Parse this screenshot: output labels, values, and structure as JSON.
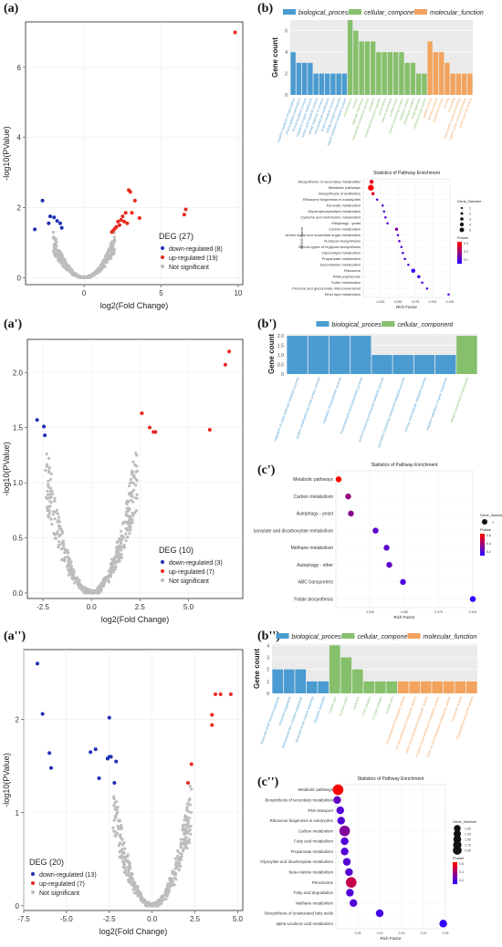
{
  "panel_labels": [
    "(a)",
    "(b)",
    "(c)",
    "(a')",
    "(b')",
    "(c')",
    "(a'')",
    "(b'')",
    "(c'')"
  ],
  "colors": {
    "down": "#1f2fb4",
    "up": "#e8281e",
    "ns": "#bdbdbd",
    "biological_process": "#4a9bd1",
    "cellular_component": "#86c06c",
    "molecular_function": "#f2a35e",
    "pvalue_low": "#ff0000",
    "pvalue_high": "#3300ff"
  },
  "chart_data": [
    {
      "id": "a",
      "type": "scatter",
      "xlabel": "log2(Fold Change)",
      "ylabel": "-log10(PValue)",
      "xlim": [
        -3.8,
        10.3
      ],
      "ylim": [
        -0.2,
        7.3
      ],
      "xticks": [
        0,
        5,
        10
      ],
      "yticks": [
        0,
        2,
        4,
        6
      ],
      "legend": {
        "title": "DEG (27)",
        "entries": [
          "down-regulated (8)",
          "up-regulated (19)",
          "Not significant"
        ],
        "placement": "bottom-right"
      },
      "series": [
        {
          "name": "down-regulated (8)",
          "color_key": "down",
          "x": [
            -2.7,
            -2.3,
            -2.2,
            -1.95,
            -1.75,
            -1.55,
            -3.2,
            -1.45
          ],
          "y": [
            2.2,
            1.55,
            1.75,
            1.72,
            1.62,
            1.55,
            1.38,
            1.42
          ]
        },
        {
          "name": "up-regulated (19)",
          "color_key": "up",
          "x": [
            9.8,
            6.6,
            6.5,
            2.9,
            3.0,
            3.3,
            3.1,
            2.5,
            2.4,
            2.2,
            2.7,
            2.1,
            3.6,
            2.0,
            1.9,
            2.3,
            2.6,
            2.8,
            1.8
          ],
          "y": [
            7.0,
            1.95,
            1.8,
            2.5,
            2.45,
            2.2,
            1.85,
            1.75,
            1.65,
            1.6,
            1.85,
            1.45,
            1.7,
            1.4,
            1.35,
            1.5,
            1.6,
            1.55,
            1.3
          ]
        },
        {
          "name": "Not significant",
          "color_key": "ns",
          "generator": "volcano",
          "xmax": 2.0,
          "ymax": 1.3
        }
      ]
    },
    {
      "id": "b",
      "type": "bar",
      "ylabel": "Gene count",
      "ylim": [
        0,
        7
      ],
      "yticks": [
        0,
        2,
        4,
        6
      ],
      "legend": [
        "biological_process",
        "cellular_component",
        "molecular_function"
      ],
      "categories": [
        "negative regulation of transcription",
        "DNA-templated transcription",
        "RNA biosynthetic process",
        "regulation of gene expression",
        "nucleic acid metabolic process",
        "cellular response to stimulus",
        "macromolecule modification",
        "protein metabolic process",
        "cellular nitrogen compound",
        "organic substance metabolic process",
        "mitochondrion",
        "nucleus",
        "organelle membrane",
        "intracellular anatomical structure",
        "cytoplasm",
        "membrane-bounded organelle",
        "cell periphery",
        "plasma membrane",
        "nuclear lumen",
        "protein-containing complex",
        "catalytic complex",
        "transferase complex",
        "Golgi apparatus",
        "endomembrane system",
        "catalytic activity",
        "hydrolase activity",
        "transferase activity",
        "binding",
        "ion binding",
        "heterocyclic compound binding",
        "organic cyclic compound binding",
        "small molecule binding"
      ],
      "groups": [
        "biological_process",
        "biological_process",
        "biological_process",
        "biological_process",
        "biological_process",
        "biological_process",
        "biological_process",
        "biological_process",
        "biological_process",
        "biological_process",
        "cellular_component",
        "cellular_component",
        "cellular_component",
        "cellular_component",
        "cellular_component",
        "cellular_component",
        "cellular_component",
        "cellular_component",
        "cellular_component",
        "cellular_component",
        "cellular_component",
        "cellular_component",
        "cellular_component",
        "cellular_component",
        "molecular_function",
        "molecular_function",
        "molecular_function",
        "molecular_function",
        "molecular_function",
        "molecular_function",
        "molecular_function",
        "molecular_function"
      ],
      "values": [
        4,
        3,
        3,
        3,
        2,
        2,
        2,
        2,
        2,
        2,
        7,
        6,
        5,
        5,
        5,
        4,
        4,
        4,
        4,
        4,
        3,
        3,
        2,
        2,
        5,
        4,
        4,
        3,
        2,
        2,
        2,
        2
      ]
    },
    {
      "id": "c",
      "type": "scatter",
      "title": "Statistics of Pathway Enrichment",
      "xlabel": "Rich Factor",
      "ylabel": "KEGG Terms",
      "xlim": [
        0,
        0.125
      ],
      "xticks": [
        0.025,
        0.05,
        0.075,
        0.1,
        0.125
      ],
      "xticklabels": [
        "0.025",
        "0.050",
        "0.075",
        "0.100",
        "0.125"
      ],
      "legend_size_title": "Gene_Number",
      "legend_size_values": [
        1,
        2,
        3,
        4,
        5
      ],
      "legend_color_title": "Pvalue",
      "legend_color_ticks": [
        "0.3",
        "0.2",
        "0.1"
      ],
      "categories": [
        "Biosynthesis of secondary metabolites",
        "Metabolic pathways",
        "Biosynthesis of antibiotics",
        "Ribosome biogenesis in eukaryotes",
        "Pyruvate metabolism",
        "Glycerophospholipid metabolism",
        "Cysteine and methionine metabolism",
        "Mitophagy - yeast",
        "Carbon metabolism",
        "Amino sugar and nucleotide sugar metabolism",
        "N-Glycan biosynthesis",
        "Various types of N-glycan biosynthesis",
        "Glycerolipid metabolism",
        "Propanoate metabolism",
        "beta-Alanine metabolism",
        "Ribosome",
        "RNA polymerase",
        "Sulfur metabolism",
        "Pentose and glucuronate interconversions",
        "Ether lipid metabolism"
      ],
      "x": [
        0.012,
        0.011,
        0.014,
        0.02,
        0.028,
        0.03,
        0.032,
        0.035,
        0.048,
        0.05,
        0.052,
        0.055,
        0.057,
        0.06,
        0.065,
        0.072,
        0.08,
        0.085,
        0.092,
        0.123
      ],
      "sizes": [
        3,
        5,
        2,
        1,
        1,
        1,
        1,
        1,
        2,
        1,
        1,
        1,
        1,
        1,
        1,
        3,
        2,
        1,
        1,
        1
      ],
      "pvalues": [
        0.05,
        0.01,
        0.05,
        0.3,
        0.3,
        0.3,
        0.3,
        0.3,
        0.22,
        0.3,
        0.3,
        0.3,
        0.3,
        0.3,
        0.3,
        0.35,
        0.32,
        0.3,
        0.3,
        0.3
      ]
    },
    {
      "id": "a'",
      "type": "scatter",
      "xlabel": "log2(Fold Change)",
      "ylabel": "-log10(PValue)",
      "xlim": [
        -3.3,
        7.8
      ],
      "ylim": [
        -0.05,
        2.3
      ],
      "xticks": [
        -2.5,
        0.0,
        2.5,
        5.0
      ],
      "xticklabels": [
        "-2.5",
        "0.0",
        "2.5",
        "5.0"
      ],
      "yticks": [
        0.0,
        0.5,
        1.0,
        1.5,
        2.0
      ],
      "yticklabels": [
        "0.0",
        "0.5",
        "1.0",
        "1.5",
        "2.0"
      ],
      "legend": {
        "title": "DEG (10)",
        "entries": [
          "down-regulated (3)",
          "up-regulated (7)",
          "Not significant"
        ],
        "placement": "bottom-right"
      },
      "series": [
        {
          "name": "down-regulated (3)",
          "color_key": "down",
          "x": [
            -2.8,
            -2.45,
            -2.4
          ],
          "y": [
            1.57,
            1.51,
            1.43
          ]
        },
        {
          "name": "up-regulated (7)",
          "color_key": "up",
          "x": [
            7.1,
            6.9,
            2.6,
            3.2,
            3.3,
            6.1,
            3.0
          ],
          "y": [
            2.19,
            2.07,
            1.63,
            1.46,
            1.46,
            1.48,
            1.5
          ]
        },
        {
          "name": "Not significant",
          "color_key": "ns",
          "generator": "volcano",
          "xmax": 2.4,
          "ymax": 1.45
        }
      ]
    },
    {
      "id": "b'",
      "type": "bar",
      "ylabel": "Gene count",
      "ylim": [
        0,
        2.1
      ],
      "yticks": [
        0,
        0.5,
        1.0,
        1.5,
        2.0
      ],
      "yticklabels": [
        "0",
        "0.5",
        "1.0",
        "1.5",
        "2.0"
      ],
      "legend": [
        "biological_process",
        "cellular_component"
      ],
      "categories": [
        "regulation of small molecule metabolic process",
        "protein modification by small protein removal",
        "regulation of biosynthetic process",
        "monocarboxylic acid biosynthetic process",
        "purine-containing compound metabolic process",
        "pyrimidine-containing compound metabolic process",
        "cellular carbohydrate metabolic process",
        "negative regulation of gene expression",
        "integral component of membrane"
      ],
      "groups": [
        "biological_process",
        "biological_process",
        "biological_process",
        "biological_process",
        "biological_process",
        "biological_process",
        "biological_process",
        "biological_process",
        "cellular_component"
      ],
      "values": [
        2,
        2,
        2,
        2,
        1,
        1,
        1,
        1,
        2
      ]
    },
    {
      "id": "c'",
      "type": "scatter",
      "title": "Statistics of Pathway Enrichment",
      "xlabel": "Rich Factor",
      "xlim": [
        0,
        0.1
      ],
      "xticks": [
        0.025,
        0.05,
        0.075,
        0.1
      ],
      "xticklabels": [
        "0.025",
        "0.050",
        "0.075",
        "0.100"
      ],
      "legend_size_title": "Gene_Number",
      "legend_size_values": [
        1
      ],
      "legend_color_title": "Pvalue",
      "legend_color_ticks": [
        "0.6",
        "0.4",
        "0.2"
      ],
      "categories": [
        "Metabolic pathways",
        "Carbon metabolism",
        "Autophagy - yeast",
        "Glyoxylate and dicarboxylate metabolism",
        "Methane metabolism",
        "Autophagy - other",
        "ABC transporters",
        "Folate biosynthesis"
      ],
      "x": [
        0.002,
        0.009,
        0.011,
        0.029,
        0.037,
        0.039,
        0.049,
        0.1
      ],
      "sizes": [
        1,
        1,
        1,
        1,
        1,
        1,
        1,
        1
      ],
      "pvalues": [
        0.02,
        0.35,
        0.4,
        0.55,
        0.55,
        0.55,
        0.6,
        0.68
      ]
    },
    {
      "id": "a''",
      "type": "scatter",
      "xlabel": "log2(Fold Change)",
      "ylabel": "-log10(PValue)",
      "xlim": [
        -7.5,
        5.3
      ],
      "ylim": [
        -0.05,
        2.75
      ],
      "xticks": [
        -7.5,
        -5.0,
        -2.5,
        0.0,
        2.5,
        5.0
      ],
      "xticklabels": [
        "-7.5",
        "-5.0",
        "-2.5",
        "0.0",
        "2.5",
        "5.0"
      ],
      "yticks": [
        0,
        1,
        2
      ],
      "legend": {
        "title": "DEG (20)",
        "entries": [
          "down-regulated (13)",
          "up-regulated (7)",
          "Not significant"
        ],
        "placement": "bottom-left"
      },
      "series": [
        {
          "name": "down-regulated (13)",
          "color_key": "down",
          "x": [
            -6.7,
            -6.4,
            -6.0,
            -5.9,
            -3.6,
            -3.3,
            -3.1,
            -2.5,
            -2.2,
            -2.5,
            -2.1,
            -2.6,
            -2.4
          ],
          "y": [
            2.6,
            2.06,
            1.64,
            1.48,
            1.65,
            1.68,
            1.37,
            2.02,
            1.32,
            1.6,
            1.55,
            1.58,
            1.6
          ]
        },
        {
          "name": "up-regulated (7)",
          "color_key": "up",
          "x": [
            4.6,
            3.7,
            3.5,
            3.5,
            2.3,
            2.1,
            4.0
          ],
          "y": [
            2.27,
            2.27,
            2.05,
            1.94,
            1.52,
            1.32,
            2.27
          ]
        },
        {
          "name": "Not significant",
          "color_key": "ns",
          "generator": "volcano",
          "xmax": 2.3,
          "ymax": 1.4
        }
      ]
    },
    {
      "id": "b''",
      "type": "bar",
      "ylabel": "Gene count",
      "ylim": [
        0,
        4.1
      ],
      "yticks": [
        0,
        1,
        2,
        3,
        4
      ],
      "legend": [
        "biological_process",
        "cellular_component",
        "molecular_function"
      ],
      "categories": [
        "ribosomal small subunit biogenesis",
        "ribosome biogenesis",
        "ribonucleoprotein complex biogenesis",
        "ribosomal small subunit assembly",
        "ribosome assembly",
        "nuclear part",
        "nuclear lumen",
        "nucleolus",
        "CCR complex",
        "U2-type complex",
        "nuclear pore",
        "transmembrane transporter activity",
        "ion transmembrane transporter activity",
        "cation transmembrane transporter activity",
        "inorganic transmembrane transporter activity",
        "metal ion transmembrane transporter activity",
        "transporter activity",
        "oligopeptide transporter activity"
      ],
      "groups": [
        "biological_process",
        "biological_process",
        "biological_process",
        "biological_process",
        "biological_process",
        "cellular_component",
        "cellular_component",
        "cellular_component",
        "cellular_component",
        "cellular_component",
        "cellular_component",
        "molecular_function",
        "molecular_function",
        "molecular_function",
        "molecular_function",
        "molecular_function",
        "molecular_function",
        "molecular_function"
      ],
      "values": [
        2,
        2,
        2,
        1,
        1,
        4,
        3,
        2,
        1,
        1,
        1,
        1,
        1,
        1,
        1,
        1,
        1,
        1
      ]
    },
    {
      "id": "c''",
      "type": "scatter",
      "title": "Statistics of Pathway Enrichment",
      "xlabel": "Rich Factor",
      "xlim": [
        0,
        0.25
      ],
      "xticks": [
        0.05,
        0.1,
        0.15,
        0.2,
        0.25
      ],
      "xticklabels": [
        "0.05",
        "0.10",
        "0.15",
        "0.20",
        "0.25"
      ],
      "legend_size_title": "Gene_Number",
      "legend_size_values": [
        1.0,
        1.25,
        1.5,
        1.75,
        2.0
      ],
      "legend_size_labels": [
        "1.00",
        "1.25",
        "1.50",
        "1.75",
        "2.00"
      ],
      "legend_color_title": "Pvalue",
      "legend_color_ticks": [
        "0.6",
        "0.4",
        "0.2"
      ],
      "categories": [
        "Metabolic pathways",
        "Biosynthesis of secondary metabolites",
        "RNA transport",
        "Ribosome biogenesis in eukaryotes",
        "Carbon metabolism",
        "Fatty acid metabolism",
        "Propanoate metabolism",
        "Glyoxylate and dicarboxylate metabolism",
        "beta-Alanine metabolism",
        "Peroxisome",
        "Fatty acid degradation",
        "Methane metabolism",
        "Biosynthesis of unsaturated fatty acids",
        "alpha-Linolenic acid metabolism"
      ],
      "x": [
        0.005,
        0.003,
        0.01,
        0.012,
        0.02,
        0.02,
        0.02,
        0.025,
        0.03,
        0.035,
        0.032,
        0.04,
        0.1,
        0.245
      ],
      "sizes": [
        2.0,
        1.0,
        1.0,
        1.0,
        2.0,
        1.0,
        1.0,
        1.0,
        1.0,
        2.0,
        1.0,
        1.0,
        1.0,
        1.0
      ],
      "pvalues": [
        0.02,
        0.5,
        0.55,
        0.55,
        0.4,
        0.55,
        0.55,
        0.55,
        0.55,
        0.2,
        0.55,
        0.55,
        0.6,
        0.65
      ]
    }
  ]
}
